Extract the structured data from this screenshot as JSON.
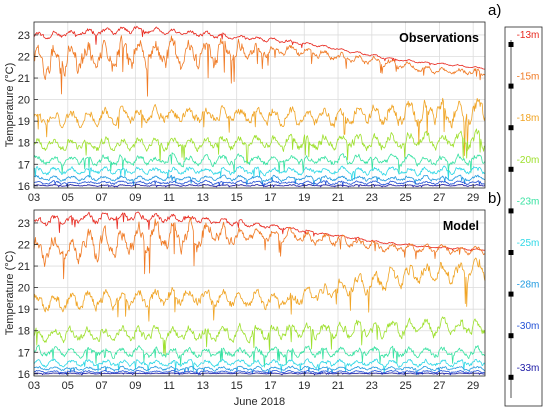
{
  "chart_data": [
    {
      "type": "line",
      "panel_tag": "a)",
      "annotation": "Observations",
      "ylabel": "Temperature (°C)",
      "xlabel": "",
      "x_range_day": [
        3,
        29.7
      ],
      "ylim": [
        15.9,
        23.6
      ],
      "yticks": [
        16,
        17,
        18,
        19,
        20,
        21,
        22,
        23
      ],
      "xticks": [
        "03",
        "05",
        "07",
        "09",
        "11",
        "13",
        "15",
        "17",
        "19",
        "21",
        "23",
        "25",
        "27",
        "29"
      ],
      "grid": true,
      "series": [
        {
          "name": "-13m",
          "color": "#e8291f",
          "base": [
            [
              3,
              22.95
            ],
            [
              6,
              23.1
            ],
            [
              9,
              23.25
            ],
            [
              12,
              23.1
            ],
            [
              15,
              22.9
            ],
            [
              18,
              22.7
            ],
            [
              21,
              22.35
            ],
            [
              24,
              21.9
            ],
            [
              27,
              21.65
            ],
            [
              29.7,
              21.45
            ]
          ],
          "amp": [
            [
              3,
              0.25
            ],
            [
              12,
              0.2
            ],
            [
              20,
              0.08
            ],
            [
              29.7,
              0.05
            ]
          ]
        },
        {
          "name": "-15m",
          "color": "#f07a24",
          "base": [
            [
              3,
              21.8
            ],
            [
              6,
              22.0
            ],
            [
              9,
              22.2
            ],
            [
              12,
              22.1
            ],
            [
              15,
              22.2
            ],
            [
              18,
              22.3
            ],
            [
              21,
              22.0
            ],
            [
              24,
              21.7
            ],
            [
              27,
              21.3
            ],
            [
              29.7,
              21.3
            ]
          ],
          "amp": [
            [
              3,
              0.9
            ],
            [
              14,
              0.9
            ],
            [
              17,
              0.3
            ],
            [
              29.7,
              0.2
            ]
          ]
        },
        {
          "name": "-18m",
          "color": "#f0a424",
          "base": [
            [
              3,
              19.1
            ],
            [
              10,
              19.3
            ],
            [
              20,
              19.2
            ],
            [
              29.7,
              19.4
            ]
          ],
          "amp": [
            [
              3,
              0.45
            ],
            [
              20,
              0.5
            ],
            [
              29.7,
              0.9
            ]
          ]
        },
        {
          "name": "-20m",
          "color": "#9ee02e",
          "base": [
            [
              3,
              17.9
            ],
            [
              15,
              18.0
            ],
            [
              29.7,
              18.1
            ]
          ],
          "amp": [
            [
              3,
              0.35
            ],
            [
              29.7,
              0.5
            ]
          ]
        },
        {
          "name": "-23m",
          "color": "#38e2a2",
          "base": [
            [
              3,
              17.2
            ],
            [
              29.7,
              17.2
            ]
          ],
          "amp": [
            [
              3,
              0.3
            ],
            [
              29.7,
              0.3
            ]
          ]
        },
        {
          "name": "-25m",
          "color": "#2fd8e6",
          "base": [
            [
              3,
              16.7
            ],
            [
              29.7,
              16.7
            ]
          ],
          "amp": [
            [
              3,
              0.22
            ],
            [
              29.7,
              0.22
            ]
          ]
        },
        {
          "name": "-28m",
          "color": "#219be0",
          "base": [
            [
              3,
              16.35
            ],
            [
              29.7,
              16.35
            ]
          ],
          "amp": [
            [
              3,
              0.15
            ],
            [
              29.7,
              0.15
            ]
          ]
        },
        {
          "name": "-30m",
          "color": "#2452d6",
          "base": [
            [
              3,
              16.15
            ],
            [
              29.7,
              16.15
            ]
          ],
          "amp": [
            [
              3,
              0.1
            ],
            [
              29.7,
              0.1
            ]
          ]
        },
        {
          "name": "-33m",
          "color": "#1c1aa6",
          "base": [
            [
              3,
              16.02
            ],
            [
              29.7,
              16.02
            ]
          ],
          "amp": [
            [
              3,
              0.05
            ],
            [
              29.7,
              0.05
            ]
          ]
        }
      ]
    },
    {
      "type": "line",
      "panel_tag": "b)",
      "annotation": "Model",
      "ylabel": "Temperature (°C)",
      "xlabel": "June 2018",
      "x_range_day": [
        3,
        29.7
      ],
      "ylim": [
        15.9,
        23.6
      ],
      "yticks": [
        16,
        17,
        18,
        19,
        20,
        21,
        22,
        23
      ],
      "xticks": [
        "03",
        "05",
        "07",
        "09",
        "11",
        "13",
        "15",
        "17",
        "19",
        "21",
        "23",
        "25",
        "27",
        "29"
      ],
      "grid": true,
      "series": [
        {
          "name": "-13m",
          "color": "#e8291f",
          "base": [
            [
              3,
              23.0
            ],
            [
              6,
              23.2
            ],
            [
              9,
              23.3
            ],
            [
              12,
              23.2
            ],
            [
              15,
              23.0
            ],
            [
              18,
              22.75
            ],
            [
              21,
              22.4
            ],
            [
              24,
              22.05
            ],
            [
              27,
              21.85
            ],
            [
              29.7,
              21.75
            ]
          ],
          "amp": [
            [
              3,
              0.3
            ],
            [
              12,
              0.25
            ],
            [
              20,
              0.08
            ],
            [
              29.7,
              0.05
            ]
          ]
        },
        {
          "name": "-15m",
          "color": "#f07a24",
          "base": [
            [
              3,
              21.6
            ],
            [
              6,
              21.9
            ],
            [
              9,
              22.3
            ],
            [
              12,
              22.4
            ],
            [
              15,
              22.4
            ],
            [
              18,
              22.4
            ],
            [
              21,
              22.2
            ],
            [
              24,
              21.9
            ],
            [
              27,
              21.8
            ],
            [
              29.7,
              21.7
            ]
          ],
          "amp": [
            [
              3,
              0.8
            ],
            [
              12,
              0.9
            ],
            [
              16,
              0.4
            ],
            [
              29.7,
              0.2
            ]
          ]
        },
        {
          "name": "-18m",
          "color": "#f0a424",
          "base": [
            [
              3,
              19.3
            ],
            [
              12,
              19.6
            ],
            [
              18,
              19.4
            ],
            [
              24,
              20.4
            ],
            [
              29.7,
              20.9
            ]
          ],
          "amp": [
            [
              3,
              0.5
            ],
            [
              18,
              0.5
            ],
            [
              29.7,
              0.7
            ]
          ]
        },
        {
          "name": "-20m",
          "color": "#9ee02e",
          "base": [
            [
              3,
              17.8
            ],
            [
              15,
              17.9
            ],
            [
              29.7,
              18.2
            ]
          ],
          "amp": [
            [
              3,
              0.4
            ],
            [
              29.7,
              0.5
            ]
          ]
        },
        {
          "name": "-23m",
          "color": "#38e2a2",
          "base": [
            [
              3,
              17.0
            ],
            [
              29.7,
              17.0
            ]
          ],
          "amp": [
            [
              3,
              0.3
            ],
            [
              29.7,
              0.3
            ]
          ]
        },
        {
          "name": "-25m",
          "color": "#2fd8e6",
          "base": [
            [
              3,
              16.5
            ],
            [
              29.7,
              16.5
            ]
          ],
          "amp": [
            [
              3,
              0.2
            ],
            [
              29.7,
              0.2
            ]
          ]
        },
        {
          "name": "-28m",
          "color": "#219be0",
          "base": [
            [
              3,
              16.25
            ],
            [
              29.7,
              16.25
            ]
          ],
          "amp": [
            [
              3,
              0.12
            ],
            [
              29.7,
              0.12
            ]
          ]
        },
        {
          "name": "-30m",
          "color": "#2452d6",
          "base": [
            [
              3,
              16.1
            ],
            [
              29.7,
              16.1
            ]
          ],
          "amp": [
            [
              3,
              0.07
            ],
            [
              29.7,
              0.07
            ]
          ]
        },
        {
          "name": "-33m",
          "color": "#1c1aa6",
          "base": [
            [
              3,
              16.02
            ],
            [
              29.7,
              16.02
            ]
          ],
          "amp": [
            [
              3,
              0.03
            ],
            [
              29.7,
              0.03
            ]
          ]
        }
      ]
    }
  ],
  "depth_legend": {
    "entries": [
      {
        "label": "-13m",
        "color": "#e8291f"
      },
      {
        "label": "-15m",
        "color": "#f07a24"
      },
      {
        "label": "-18m",
        "color": "#f0a424"
      },
      {
        "label": "-20m",
        "color": "#9ee02e"
      },
      {
        "label": "-23m",
        "color": "#38e2a2"
      },
      {
        "label": "-25m",
        "color": "#2fd8e6"
      },
      {
        "label": "-28m",
        "color": "#219be0"
      },
      {
        "label": "-30m",
        "color": "#2452d6"
      },
      {
        "label": "-33m",
        "color": "#1c1aa6"
      }
    ]
  }
}
